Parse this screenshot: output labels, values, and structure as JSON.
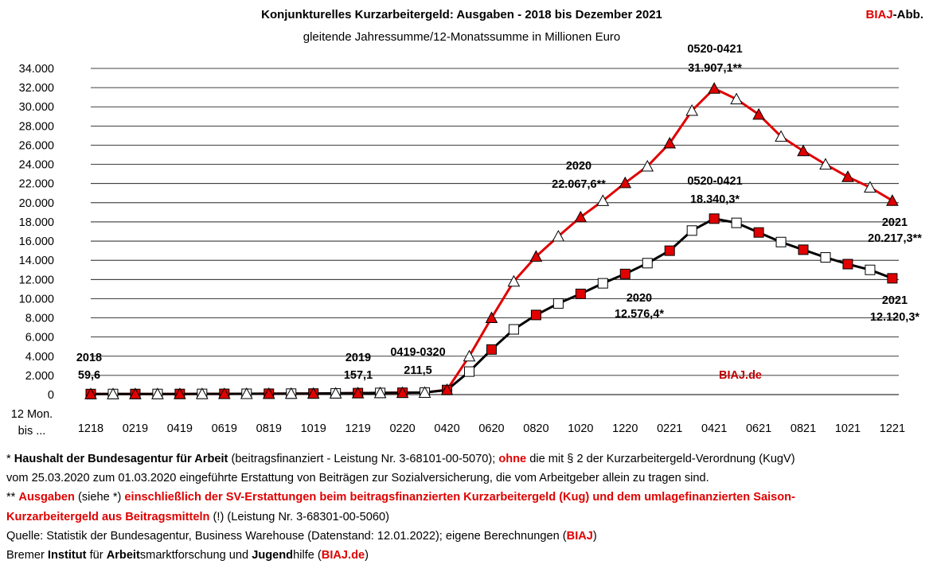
{
  "header": {
    "title": "Konjunkturelles Kurzarbeitergeld:  Ausgaben - 2018 bis Dezember 2021",
    "subtitle": "gleitende  Jahressumme/12-Monatssumme in Millionen Euro",
    "brand_main": "BIAJ",
    "brand_suffix": "-Abb."
  },
  "chart_data": {
    "type": "line",
    "title": "Konjunkturelles Kurzarbeitergeld:  Ausgaben - 2018 bis Dezember 2021",
    "subtitle": "gleitende  Jahressumme/12-Monatssumme in Millionen Euro",
    "xlabel": "12 Mon. bis ...",
    "ylim": [
      0,
      34000
    ],
    "y_ticks": [
      "0",
      "2.000",
      "4.000",
      "6.000",
      "8.000",
      "10.000",
      "12.000",
      "14.000",
      "16.000",
      "18.000",
      "20.000",
      "22.000",
      "24.000",
      "26.000",
      "28.000",
      "30.000",
      "32.000",
      "34.000"
    ],
    "x_axis_title_lines": [
      "12 Mon.",
      "bis ..."
    ],
    "x_tick_labels": [
      "1218",
      "0219",
      "0419",
      "0619",
      "0819",
      "1019",
      "1219",
      "0220",
      "0420",
      "0620",
      "0820",
      "1020",
      "1220",
      "0221",
      "0421",
      "0621",
      "0821",
      "1021",
      "1221"
    ],
    "grid": true,
    "watermark": "BIAJ.de",
    "x": [
      "1218",
      "0119",
      "0219",
      "0319",
      "0419",
      "0519",
      "0619",
      "0719",
      "0819",
      "0919",
      "1019",
      "1119",
      "1219",
      "0120",
      "0220",
      "0320",
      "0420",
      "0520",
      "0620",
      "0720",
      "0820",
      "0920",
      "1020",
      "1120",
      "1220",
      "0121",
      "0221",
      "0321",
      "0421",
      "0521",
      "0621",
      "0721",
      "0821",
      "0921",
      "1021",
      "1121",
      "1221"
    ],
    "series": [
      {
        "values": [
          59.6,
          62,
          64,
          66,
          68,
          72,
          78,
          85,
          92,
          100,
          110,
          130,
          157.1,
          175,
          195,
          211.5,
          500,
          4000,
          8000,
          11800,
          14400,
          16500,
          18500,
          20200,
          22067.6,
          23800,
          26200,
          29600,
          31907.1,
          30800,
          29200,
          26900,
          25400,
          24000,
          22700,
          21600,
          20217.3
        ],
        "color": "#e00000",
        "marker_pattern": "triangle; red filled at even months, white at odd months"
      },
      {
        "values": [
          59.6,
          62,
          64,
          66,
          68,
          72,
          78,
          85,
          92,
          100,
          110,
          130,
          157.1,
          175,
          195,
          211.5,
          480,
          2400,
          4700,
          6800,
          8300,
          9500,
          10500,
          11600,
          12576.4,
          13700,
          15000,
          17100,
          18340.3,
          17900,
          16900,
          15900,
          15100,
          14300,
          13600,
          13000,
          12120.3
        ],
        "color": "#000000",
        "marker_pattern": "square; red filled at even months, white at odd months"
      }
    ],
    "annotations": [
      {
        "lines": [
          "0520-0421",
          "31.907,1**"
        ]
      },
      {
        "lines": [
          "2020",
          "22.067,6**"
        ]
      },
      {
        "lines": [
          "0520-0421",
          "18.340,3*"
        ]
      },
      {
        "lines": [
          "2021",
          "20.217,3**"
        ]
      },
      {
        "lines": [
          "2020",
          "12.576,4*"
        ]
      },
      {
        "lines": [
          "2021",
          "12.120,3*"
        ]
      },
      {
        "lines": [
          "2018",
          "59,6"
        ]
      },
      {
        "lines": [
          "2019",
          "157,1"
        ]
      },
      {
        "lines": [
          "0419-0320",
          "211,5"
        ]
      }
    ]
  },
  "notes": {
    "line1_a": "* ",
    "line1_b": "Haushalt der Bundesagentur für Arbeit",
    "line1_c": " (beitragsfinanziert - Leistung Nr. 3-68101-00-5070); ",
    "line1_d": "ohne",
    "line1_e": " die mit § 2 der Kurzarbeitergeld-Verordnung (KugV)",
    "line2": "vom 25.03.2020 zum 01.03.2020 eingeführte Erstattung von Beiträgen zur Sozialversicherung, die vom Arbeitgeber allein zu tragen sind.",
    "line3_a": "** ",
    "line3_b": "Ausgaben",
    "line3_c": " (siehe *) ",
    "line3_d": "einschließlich der SV-Erstattungen beim beitragsfinanzierten Kurzarbeitergeld (Kug) und dem umlagefinanzierten Saison-",
    "line4_a": "Kurzarbeitergeld aus Beitragsmitteln",
    "line4_b": " (!) (Leistung Nr. 3-68301-00-5060)",
    "line5_a": "Quelle: Statistik der Bundesagentur, Business Warehouse (Datenstand: 12.01.2022); eigene Berechnungen (",
    "line5_b": "BIAJ",
    "line5_c": ")",
    "line6_a": "Bremer ",
    "line6_b": "Institut",
    "line6_c": " für ",
    "line6_d": "Arbeit",
    "line6_e": "smarktforschung und ",
    "line6_f": "Jugend",
    "line6_g": "hilfe (",
    "line6_h": "BIAJ.de",
    "line6_i": ")"
  }
}
